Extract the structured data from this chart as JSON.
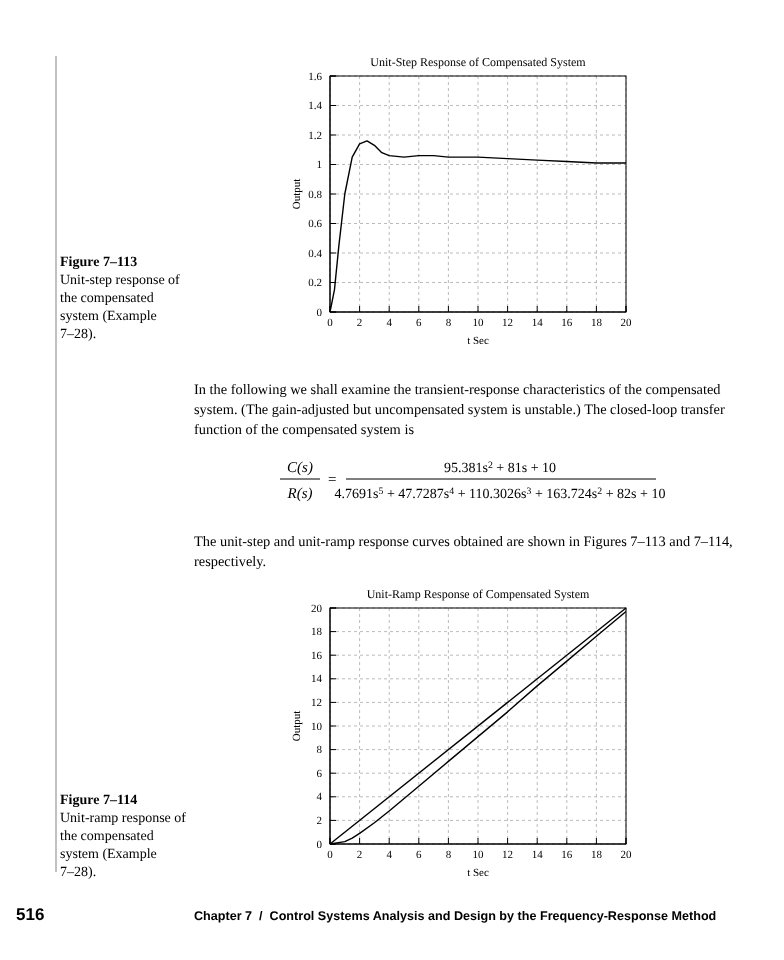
{
  "chart_data": [
    {
      "type": "line",
      "title": "Unit-Step Response of Compensated System",
      "xlabel": "t Sec",
      "ylabel": "Output",
      "xlim": [
        0,
        20
      ],
      "ylim": [
        0,
        1.6
      ],
      "xticks": [
        0,
        2,
        4,
        6,
        8,
        10,
        12,
        14,
        16,
        18,
        20
      ],
      "yticks": [
        0,
        0.2,
        0.4,
        0.6,
        0.8,
        1,
        1.2,
        1.4,
        1.6
      ],
      "grid": true,
      "line_style": "solid",
      "series": [
        {
          "color": "#000000",
          "x": [
            0,
            0.3,
            0.6,
            1,
            1.5,
            2,
            2.5,
            3,
            3.5,
            4,
            5,
            6,
            7,
            8,
            10,
            12,
            14,
            16,
            18,
            20
          ],
          "values": [
            0,
            0.15,
            0.45,
            0.8,
            1.05,
            1.14,
            1.16,
            1.13,
            1.08,
            1.06,
            1.05,
            1.06,
            1.06,
            1.05,
            1.05,
            1.04,
            1.03,
            1.02,
            1.01,
            1.01
          ]
        }
      ],
      "annotations": [
        "Figure 7–113",
        "Unit-step response of the compensated system (Example 7–28).",
        "In the following we shall examine the transient-response characteristics of the compensated system. (The gain-adjusted but uncompensated system is unstable.) The closed-loop transfer function of the compensated system is",
        "C(s)",
        "R(s)",
        "95.381s$^{2}$ + 81s + 10",
        "4.7691s$^{5}$ + 47.7287s$^{4}$ + 110.3026s$^{3}$ + 163.724s$^{2}$ + 82s + 10",
        "The unit-step and unit-ramp response curves obtained are shown in Figures 7–113 and 7–114, respectively.",
        "="
      ]
    },
    {
      "type": "line",
      "title": "Unit-Ramp Response of Compensated System",
      "xlabel": "t Sec",
      "ylabel": "Output",
      "xlim": [
        0,
        20
      ],
      "ylim": [
        0,
        20
      ],
      "xticks": [
        0,
        2,
        4,
        6,
        8,
        10,
        12,
        14,
        16,
        18,
        20
      ],
      "yticks": [
        0,
        2,
        4,
        6,
        8,
        10,
        12,
        14,
        16,
        18,
        20
      ],
      "grid": true,
      "line_style": "solid",
      "series": [
        {
          "color": "#000000",
          "x": [
            0,
            20
          ],
          "values": [
            0,
            20
          ]
        },
        {
          "color": "#000000",
          "x": [
            0,
            1,
            1.5,
            2,
            3,
            4,
            6,
            8,
            10,
            12,
            14,
            16,
            18,
            20
          ],
          "values": [
            0,
            0.2,
            0.5,
            0.9,
            1.8,
            2.8,
            4.9,
            7.0,
            9.1,
            11.2,
            13.4,
            15.5,
            17.6,
            19.7
          ]
        }
      ],
      "annotations": [
        "Figure 7–114",
        "Unit-ramp response of the compensated system (Example 7–28).",
        "516",
        "Chapter 7  /  Control Systems Analysis and Design by the Frequency-Response Method"
      ]
    }
  ]
}
